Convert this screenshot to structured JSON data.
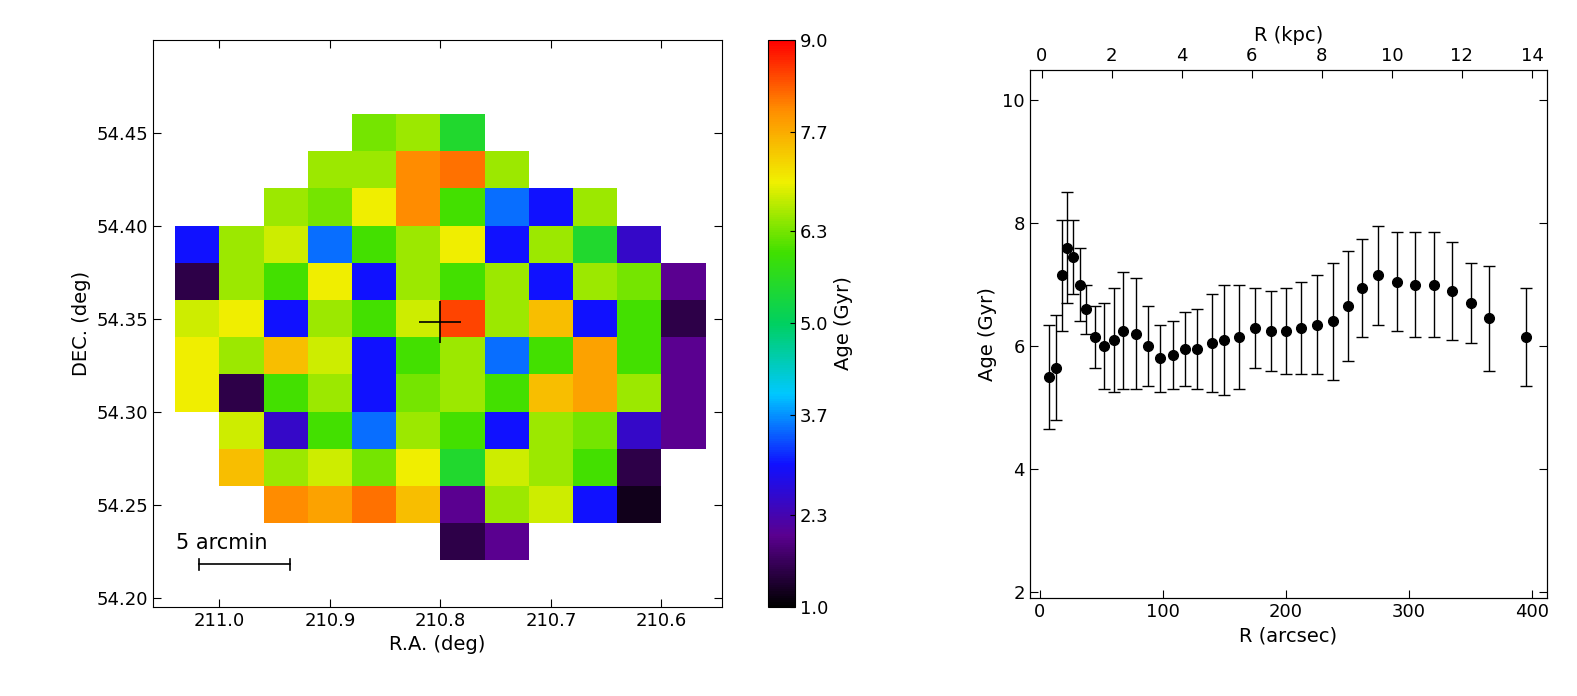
{
  "chart_data": [
    {
      "type": "heatmap",
      "xlabel": "R.A. (deg)",
      "ylabel": "DEC. (deg)",
      "xlim": [
        211.06,
        210.545
      ],
      "ylim": [
        54.195,
        54.5
      ],
      "xticks": [
        211.0,
        210.9,
        210.8,
        210.7,
        210.6
      ],
      "yticks": [
        {
          "value": 54.2,
          "label": "54.20"
        },
        54.25,
        {
          "value": 54.3,
          "label": "54.30"
        },
        54.35,
        {
          "value": 54.4,
          "label": "54.40"
        },
        54.45
      ],
      "x_edges": [
        211.04,
        211.0,
        210.96,
        210.92,
        210.88,
        210.84,
        210.8,
        210.76,
        210.72,
        210.68,
        210.64,
        210.6,
        210.56
      ],
      "y_edges": [
        54.22,
        54.24,
        54.26,
        54.28,
        54.3,
        54.32,
        54.34,
        54.36,
        54.38,
        54.4,
        54.42,
        54.44,
        54.46
      ],
      "cells": [
        [
          null,
          null,
          null,
          null,
          null,
          null,
          1.5,
          2.0,
          null,
          null,
          null,
          null
        ],
        [
          null,
          null,
          8.0,
          7.8,
          8.2,
          7.5,
          2.0,
          6.5,
          6.8,
          3.0,
          1.2,
          null
        ],
        [
          null,
          7.5,
          6.5,
          6.8,
          6.3,
          7.0,
          5.5,
          6.8,
          6.5,
          6.0,
          1.5,
          null
        ],
        [
          null,
          6.8,
          2.5,
          6.0,
          3.5,
          6.5,
          6.0,
          3.0,
          6.5,
          6.3,
          2.5,
          2.0
        ],
        [
          7.0,
          1.5,
          6.0,
          6.5,
          3.0,
          6.3,
          6.5,
          6.0,
          7.5,
          7.8,
          6.5,
          2.0
        ],
        [
          7.0,
          6.5,
          7.5,
          6.8,
          3.0,
          6.0,
          6.5,
          3.5,
          6.0,
          7.8,
          6.0,
          2.0
        ],
        [
          6.8,
          7.0,
          3.0,
          6.5,
          6.0,
          6.8,
          8.5,
          6.5,
          7.5,
          3.0,
          6.0,
          1.5
        ],
        [
          1.5,
          6.5,
          6.0,
          7.0,
          3.0,
          6.5,
          6.0,
          6.5,
          3.0,
          6.5,
          6.3,
          2.0
        ],
        [
          3.0,
          6.5,
          6.8,
          3.5,
          6.0,
          6.5,
          7.0,
          3.0,
          6.5,
          5.5,
          2.5,
          null
        ],
        [
          null,
          null,
          6.5,
          6.3,
          7.0,
          8.0,
          6.0,
          3.5,
          3.0,
          6.5,
          null,
          null
        ],
        [
          null,
          null,
          null,
          6.5,
          6.5,
          8.0,
          8.2,
          6.5,
          null,
          null,
          null,
          null
        ],
        [
          null,
          null,
          null,
          null,
          6.3,
          6.5,
          5.5,
          null,
          null,
          null,
          null,
          null
        ]
      ],
      "center": [
        210.8,
        54.348
      ],
      "scale_label": "5 arcmin",
      "colorbar_label": "Age (Gyr)",
      "colorbar_lim": [
        1.0,
        9.0
      ],
      "colorbar_ticks": [
        1.0,
        2.3,
        3.7,
        5.0,
        6.3,
        7.7,
        9.0
      ]
    },
    {
      "type": "scatter",
      "xlabel": "R (arcsec)",
      "ylabel": "Age (Gyr)",
      "x2label": "R (kpc)",
      "xlim": [
        -8,
        412
      ],
      "ylim": [
        1.9,
        10.5
      ],
      "xticks": [
        0,
        100,
        200,
        300,
        400
      ],
      "yticks": [
        2,
        4,
        6,
        8,
        10
      ],
      "x2lim": [
        -0.34,
        14.43
      ],
      "x2ticks": [
        0,
        2,
        4,
        6,
        8,
        10,
        12,
        14
      ],
      "color": "#000000",
      "marker": "circle",
      "x": [
        8,
        13,
        18,
        22,
        27,
        33,
        38,
        45,
        52,
        60,
        68,
        78,
        88,
        98,
        108,
        118,
        128,
        140,
        150,
        162,
        175,
        188,
        200,
        212,
        225,
        238,
        250,
        262,
        275,
        290,
        305,
        320,
        335,
        350,
        365,
        395
      ],
      "values": [
        5.5,
        5.65,
        7.15,
        7.6,
        7.45,
        7.0,
        6.6,
        6.15,
        6.0,
        6.1,
        6.25,
        6.2,
        6.0,
        5.8,
        5.85,
        5.95,
        5.95,
        6.05,
        6.1,
        6.15,
        6.3,
        6.25,
        6.25,
        6.3,
        6.35,
        6.4,
        6.65,
        6.95,
        7.15,
        7.05,
        7.0,
        7.0,
        6.9,
        6.7,
        6.45,
        6.15
      ],
      "errors": [
        0.85,
        0.85,
        0.9,
        0.9,
        0.6,
        0.6,
        0.4,
        0.5,
        0.7,
        0.85,
        0.95,
        0.9,
        0.65,
        0.55,
        0.55,
        0.6,
        0.65,
        0.8,
        0.9,
        0.85,
        0.65,
        0.65,
        0.7,
        0.75,
        0.8,
        0.95,
        0.9,
        0.8,
        0.8,
        0.8,
        0.85,
        0.85,
        0.8,
        0.65,
        0.85,
        0.8
      ]
    }
  ]
}
